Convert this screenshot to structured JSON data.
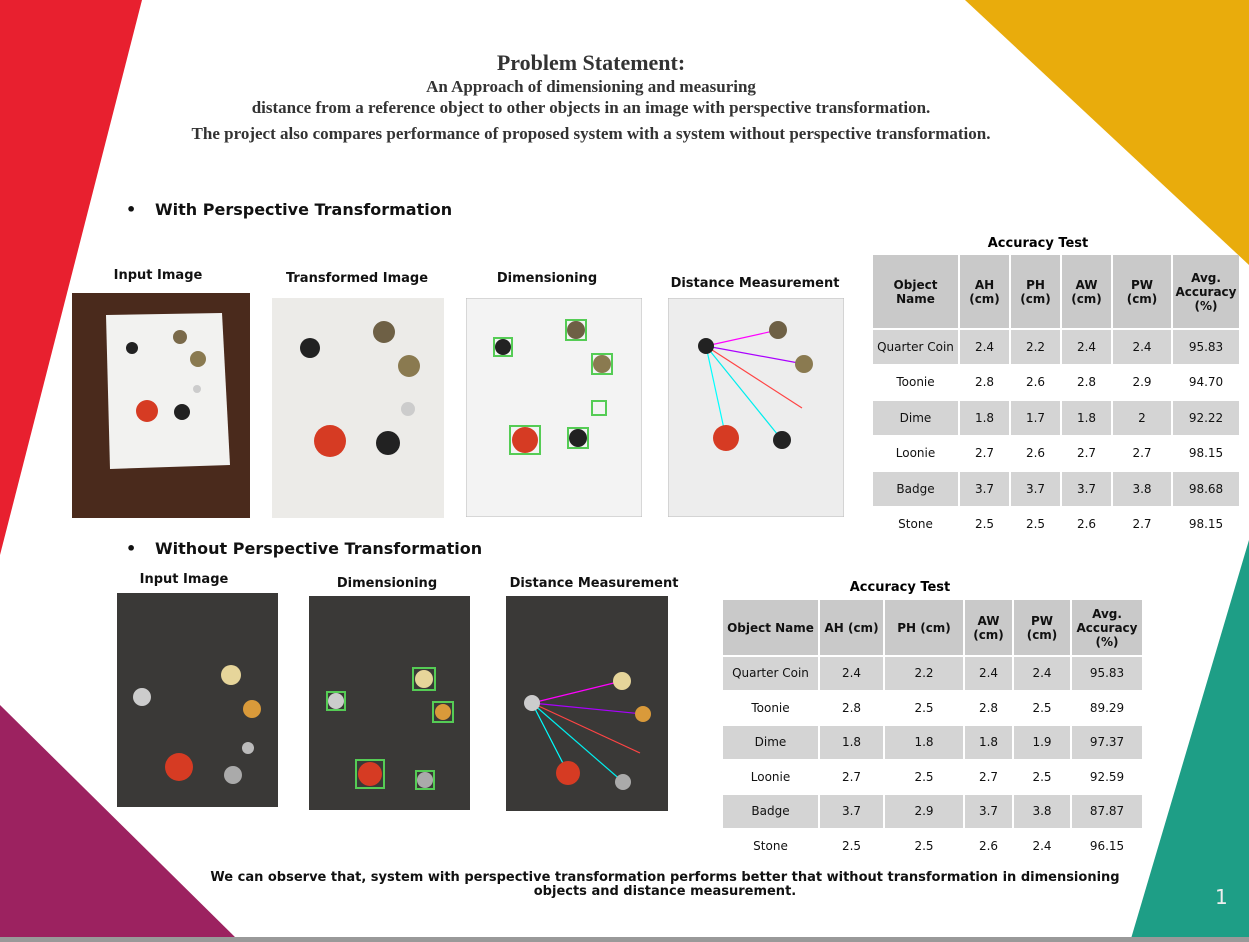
{
  "header": {
    "title": "Problem Statement:",
    "lines": [
      "An Approach of dimensioning and measuring",
      "distance from a reference object to other objects in an image with perspective transformation.",
      "The project also compares performance of proposed system with a system without perspective transformation."
    ]
  },
  "sections": [
    {
      "heading": "With Perspective Transformation",
      "image_captions": [
        "Input Image",
        "Transformed Image",
        "Dimensioning",
        "Distance Measurement"
      ],
      "table": {
        "title": "Accuracy Test",
        "columns": [
          "Object Name",
          "AH (cm)",
          "PH (cm)",
          "AW (cm)",
          "PW (cm)",
          "Avg. Accuracy (%)"
        ],
        "rows": [
          [
            "Quarter Coin",
            "2.4",
            "2.2",
            "2.4",
            "2.4",
            "95.83"
          ],
          [
            "Toonie",
            "2.8",
            "2.6",
            "2.8",
            "2.9",
            "94.70"
          ],
          [
            "Dime",
            "1.8",
            "1.7",
            "1.8",
            "2",
            "92.22"
          ],
          [
            "Loonie",
            "2.7",
            "2.6",
            "2.7",
            "2.7",
            "98.15"
          ],
          [
            "Badge",
            "3.7",
            "3.7",
            "3.7",
            "3.8",
            "98.68"
          ],
          [
            "Stone",
            "2.5",
            "2.5",
            "2.6",
            "2.7",
            "98.15"
          ]
        ]
      }
    },
    {
      "heading": "Without Perspective Transformation",
      "image_captions": [
        "Input Image",
        "Dimensioning",
        "Distance Measurement"
      ],
      "table": {
        "title": "Accuracy Test",
        "columns": [
          "Object Name",
          "AH (cm)",
          "PH (cm)",
          "AW (cm)",
          "PW (cm)",
          "Avg. Accuracy (%)"
        ],
        "rows": [
          [
            "Quarter Coin",
            "2.4",
            "2.2",
            "2.4",
            "2.4",
            "95.83"
          ],
          [
            "Toonie",
            "2.8",
            "2.5",
            "2.8",
            "2.5",
            "89.29"
          ],
          [
            "Dime",
            "1.8",
            "1.8",
            "1.8",
            "1.9",
            "97.37"
          ],
          [
            "Loonie",
            "2.7",
            "2.5",
            "2.7",
            "2.5",
            "92.59"
          ],
          [
            "Badge",
            "3.7",
            "2.9",
            "3.7",
            "3.8",
            "87.87"
          ],
          [
            "Stone",
            "2.5",
            "2.5",
            "2.6",
            "2.4",
            "96.15"
          ]
        ]
      }
    }
  ],
  "conclusion": "We can observe that, system with perspective transformation performs better that without transformation in dimensioning objects and distance measurement.",
  "page_number": "1"
}
